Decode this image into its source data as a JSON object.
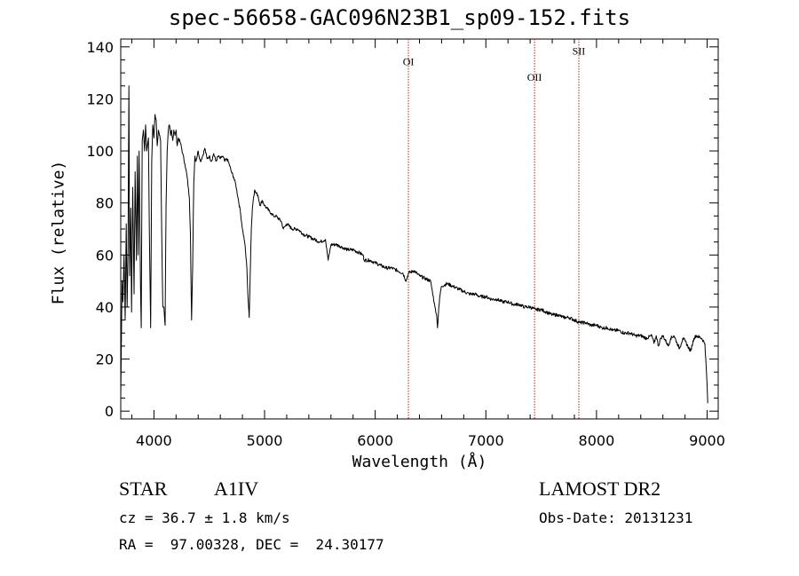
{
  "chart_data": {
    "type": "line",
    "title": "spec-56658-GAC096N23B1_sp09-152.fits",
    "xlabel": "Wavelength (Å)",
    "ylabel": "Flux (relative)",
    "xlim": [
      3700,
      9100
    ],
    "ylim": [
      -3,
      143
    ],
    "xticks": [
      4000,
      5000,
      6000,
      7000,
      8000,
      9000
    ],
    "yticks": [
      0,
      20,
      40,
      60,
      80,
      100,
      120,
      140
    ],
    "grid": false,
    "series": [
      {
        "points": [
          [
            3700,
            5
          ],
          [
            3712,
            50
          ],
          [
            3720,
            42
          ],
          [
            3730,
            60
          ],
          [
            3740,
            35
          ],
          [
            3750,
            72
          ],
          [
            3758,
            40
          ],
          [
            3766,
            62
          ],
          [
            3774,
            125
          ],
          [
            3780,
            52
          ],
          [
            3790,
            78
          ],
          [
            3798,
            38
          ],
          [
            3808,
            86
          ],
          [
            3820,
            45
          ],
          [
            3830,
            92
          ],
          [
            3842,
            58
          ],
          [
            3850,
            98
          ],
          [
            3858,
            60
          ],
          [
            3866,
            100
          ],
          [
            3878,
            50
          ],
          [
            3885,
            32
          ],
          [
            3894,
            104
          ],
          [
            3905,
            108
          ],
          [
            3915,
            100
          ],
          [
            3925,
            110
          ],
          [
            3934,
            100
          ],
          [
            3950,
            105
          ],
          [
            3958,
            70
          ],
          [
            3970,
            32
          ],
          [
            3980,
            96
          ],
          [
            3990,
            110
          ],
          [
            4000,
            105
          ],
          [
            4010,
            114
          ],
          [
            4020,
            112
          ],
          [
            4030,
            102
          ],
          [
            4040,
            108
          ],
          [
            4050,
            106
          ],
          [
            4060,
            104
          ],
          [
            4070,
            70
          ],
          [
            4080,
            40
          ],
          [
            4090,
            40
          ],
          [
            4101,
            33
          ],
          [
            4110,
            80
          ],
          [
            4120,
            100
          ],
          [
            4130,
            108
          ],
          [
            4140,
            110
          ],
          [
            4150,
            106
          ],
          [
            4160,
            108
          ],
          [
            4170,
            104
          ],
          [
            4180,
            108
          ],
          [
            4190,
            106
          ],
          [
            4200,
            108
          ],
          [
            4210,
            102
          ],
          [
            4220,
            105
          ],
          [
            4240,
            103
          ],
          [
            4260,
            99
          ],
          [
            4280,
            95
          ],
          [
            4300,
            90
          ],
          [
            4320,
            82
          ],
          [
            4330,
            68
          ],
          [
            4340,
            35
          ],
          [
            4350,
            55
          ],
          [
            4360,
            88
          ],
          [
            4370,
            98
          ],
          [
            4380,
            96
          ],
          [
            4400,
            100
          ],
          [
            4420,
            96
          ],
          [
            4440,
            98
          ],
          [
            4460,
            101
          ],
          [
            4480,
            97
          ],
          [
            4500,
            98
          ],
          [
            4520,
            96
          ],
          [
            4540,
            99
          ],
          [
            4560,
            96
          ],
          [
            4580,
            98
          ],
          [
            4600,
            97
          ],
          [
            4620,
            98
          ],
          [
            4640,
            96
          ],
          [
            4660,
            97
          ],
          [
            4680,
            95
          ],
          [
            4700,
            92
          ],
          [
            4720,
            90
          ],
          [
            4740,
            87
          ],
          [
            4760,
            82
          ],
          [
            4780,
            77
          ],
          [
            4800,
            70
          ],
          [
            4820,
            65
          ],
          [
            4840,
            55
          ],
          [
            4850,
            44
          ],
          [
            4861,
            36
          ],
          [
            4870,
            52
          ],
          [
            4880,
            70
          ],
          [
            4890,
            78
          ],
          [
            4900,
            82
          ],
          [
            4910,
            85
          ],
          [
            4920,
            84
          ],
          [
            4940,
            83
          ],
          [
            4960,
            79
          ],
          [
            4980,
            81
          ],
          [
            5000,
            79
          ],
          [
            5020,
            78
          ],
          [
            5040,
            77
          ],
          [
            5060,
            76
          ],
          [
            5080,
            75
          ],
          [
            5100,
            75
          ],
          [
            5150,
            73
          ],
          [
            5170,
            70
          ],
          [
            5200,
            72
          ],
          [
            5250,
            70
          ],
          [
            5300,
            70
          ],
          [
            5350,
            68
          ],
          [
            5400,
            67
          ],
          [
            5450,
            66
          ],
          [
            5500,
            65
          ],
          [
            5550,
            66
          ],
          [
            5575,
            58
          ],
          [
            5600,
            64
          ],
          [
            5650,
            64
          ],
          [
            5700,
            63
          ],
          [
            5750,
            62
          ],
          [
            5800,
            62
          ],
          [
            5850,
            61
          ],
          [
            5890,
            60
          ],
          [
            5900,
            58
          ],
          [
            5950,
            58
          ],
          [
            6000,
            57
          ],
          [
            6050,
            56
          ],
          [
            6100,
            55
          ],
          [
            6150,
            55
          ],
          [
            6200,
            54
          ],
          [
            6250,
            53
          ],
          [
            6280,
            50
          ],
          [
            6300,
            53
          ],
          [
            6350,
            54
          ],
          [
            6400,
            52
          ],
          [
            6450,
            51
          ],
          [
            6500,
            50
          ],
          [
            6540,
            40
          ],
          [
            6555,
            37
          ],
          [
            6563,
            32
          ],
          [
            6575,
            40
          ],
          [
            6590,
            46
          ],
          [
            6600,
            48
          ],
          [
            6650,
            49
          ],
          [
            6700,
            48
          ],
          [
            6750,
            47
          ],
          [
            6800,
            46
          ],
          [
            6850,
            45
          ],
          [
            6900,
            45
          ],
          [
            6950,
            44
          ],
          [
            7000,
            44
          ],
          [
            7050,
            43
          ],
          [
            7100,
            43
          ],
          [
            7150,
            42
          ],
          [
            7200,
            42
          ],
          [
            7250,
            41
          ],
          [
            7300,
            41
          ],
          [
            7350,
            40
          ],
          [
            7400,
            40
          ],
          [
            7450,
            39
          ],
          [
            7500,
            39
          ],
          [
            7550,
            38
          ],
          [
            7600,
            37
          ],
          [
            7650,
            37
          ],
          [
            7700,
            36
          ],
          [
            7750,
            36
          ],
          [
            7800,
            35
          ],
          [
            7850,
            34
          ],
          [
            7900,
            34
          ],
          [
            7950,
            33
          ],
          [
            8000,
            33
          ],
          [
            8050,
            32
          ],
          [
            8100,
            32
          ],
          [
            8150,
            31
          ],
          [
            8200,
            31
          ],
          [
            8250,
            30
          ],
          [
            8300,
            30
          ],
          [
            8350,
            29
          ],
          [
            8400,
            29
          ],
          [
            8450,
            28
          ],
          [
            8500,
            29
          ],
          [
            8520,
            26
          ],
          [
            8540,
            29
          ],
          [
            8560,
            25
          ],
          [
            8580,
            28
          ],
          [
            8600,
            29
          ],
          [
            8650,
            25
          ],
          [
            8670,
            28
          ],
          [
            8700,
            29
          ],
          [
            8750,
            24
          ],
          [
            8780,
            28
          ],
          [
            8800,
            27
          ],
          [
            8850,
            23
          ],
          [
            8880,
            28
          ],
          [
            8900,
            29
          ],
          [
            8950,
            28
          ],
          [
            8980,
            26
          ],
          [
            9000,
            10
          ],
          [
            9005,
            3
          ]
        ]
      }
    ],
    "annotations": [
      {
        "label": "OI",
        "x": 6300,
        "label_y": 133
      },
      {
        "label": "OII",
        "x": 7440,
        "label_y": 127
      },
      {
        "label": "SII",
        "x": 7840,
        "label_y": 137
      }
    ],
    "line_color": "#000000",
    "annotation_color": "#b22222"
  },
  "footer": {
    "object_type": "STAR",
    "spectral_class": "A1IV",
    "survey": "LAMOST DR2",
    "redshift": "cz = 36.7 ± 1.8 km/s",
    "obs_date": "Obs-Date: 20131231",
    "coords": "RA =  97.00328, DEC =  24.30177"
  }
}
